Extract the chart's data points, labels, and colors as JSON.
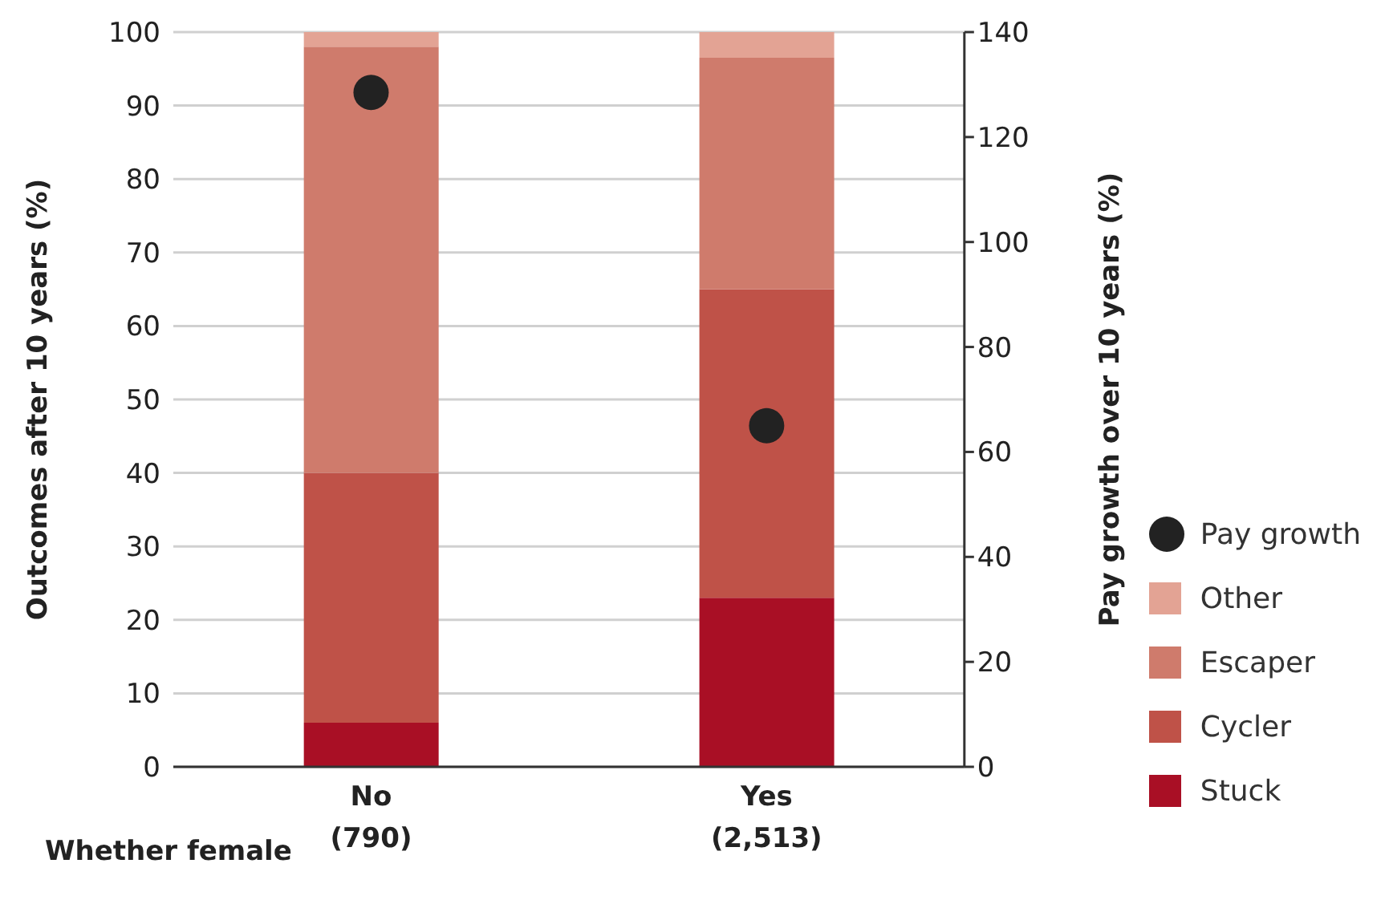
{
  "chart_data": {
    "type": "bar",
    "stacked": true,
    "categories": [
      "No\n(790)",
      "Yes\n(2,513)"
    ],
    "xlabel": "Whether female",
    "ylabel": "Outcomes after 10 years (%)",
    "y2label": "Pay growth over 10 years (%)",
    "series": [
      {
        "name": "Stuck",
        "color": "#a90f25",
        "values": [
          6,
          23
        ]
      },
      {
        "name": "Cycler",
        "color": "#bf5248",
        "values": [
          34,
          42
        ]
      },
      {
        "name": "Escaper",
        "color": "#cf7b6c",
        "values": [
          58,
          31.5
        ]
      },
      {
        "name": "Other",
        "color": "#e3a394",
        "values": [
          2,
          3.5
        ]
      },
      {
        "name": "Pay growth",
        "type": "scatter",
        "axis": "y2",
        "color": "#222222",
        "values": [
          128.5,
          65
        ]
      }
    ],
    "ylim": [
      0,
      100
    ],
    "yticks": [
      0,
      10,
      20,
      30,
      40,
      50,
      60,
      70,
      80,
      90,
      100
    ],
    "y2lim": [
      0,
      140
    ],
    "y2ticks": [
      0,
      20,
      40,
      60,
      80,
      100,
      120,
      140
    ],
    "grid": "y",
    "legend": "right",
    "marker": "circle"
  }
}
